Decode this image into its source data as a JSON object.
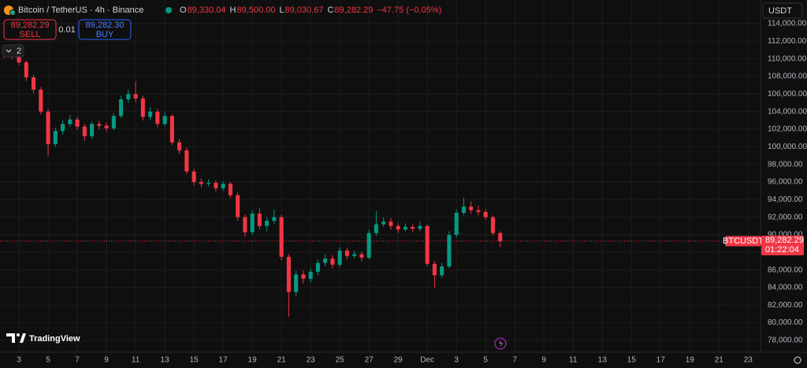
{
  "header": {
    "symbol": "Bitcoin / TetherUS · 4h · Binance",
    "ohlc": [
      {
        "label": "O",
        "value": "89,330.04"
      },
      {
        "label": "H",
        "value": "89,500.00"
      },
      {
        "label": "L",
        "value": "89,030.67"
      },
      {
        "label": "C",
        "value": "89,282.29"
      }
    ],
    "change": "−47.75 (−0.05%)"
  },
  "trade_panel": {
    "sell_price": "89,282.29",
    "sell": "SELL",
    "spread": "0.01",
    "buy_price": "89,282.30",
    "buy": "BUY"
  },
  "indicators_count": "2",
  "currency": "USDT",
  "logo": "TradingView",
  "last_price_label": {
    "symbol": "BTCUSDT",
    "price": "89,282.29",
    "countdown": "01:22:04"
  },
  "chart_data": {
    "type": "candlestick",
    "up_color": "#089981",
    "down_color": "#f23645",
    "open": [
      110600,
      110400,
      110300,
      109600,
      107900,
      106500,
      104000,
      100300,
      101800,
      102600,
      103100,
      102300,
      101200,
      102600,
      102400,
      102100,
      103500,
      105400,
      106000,
      105500,
      103400,
      104000,
      102600,
      103500,
      100500,
      99600,
      97200,
      96000,
      95800,
      95900,
      95300,
      95800,
      94500,
      92000,
      90300,
      92400,
      91000,
      91600,
      92000,
      87500,
      83500,
      85500,
      85000,
      85800,
      86800,
      87300,
      86600,
      88200,
      87600,
      87800,
      87400,
      90200,
      91200,
      91500,
      91000,
      90600,
      90900,
      90700,
      91000,
      86700,
      85400,
      86400,
      90000,
      92500,
      93200,
      92800,
      92600,
      92000,
      90200
    ],
    "high": [
      110900,
      110700,
      110500,
      109800,
      108200,
      106800,
      104300,
      102200,
      103000,
      103600,
      103400,
      102600,
      102900,
      103000,
      102800,
      103800,
      105800,
      106500,
      107400,
      105800,
      104500,
      104300,
      103900,
      103700,
      100900,
      99900,
      97500,
      96400,
      96300,
      96200,
      96100,
      96000,
      94800,
      92300,
      92800,
      93000,
      92000,
      92900,
      92300,
      87800,
      85900,
      86000,
      86200,
      87200,
      87800,
      87700,
      88600,
      88500,
      88200,
      88100,
      90600,
      92700,
      92000,
      91900,
      91300,
      91300,
      91200,
      91500,
      91200,
      87000,
      86800,
      90400,
      92900,
      94200,
      93800,
      93300,
      92900,
      92200,
      90400
    ],
    "low": [
      110100,
      110000,
      109300,
      107500,
      106100,
      103700,
      99000,
      100000,
      101400,
      102300,
      101900,
      100700,
      100900,
      102000,
      101700,
      101900,
      103300,
      105000,
      105100,
      103000,
      103000,
      102200,
      102300,
      100200,
      99200,
      96900,
      95600,
      95400,
      95500,
      94900,
      95000,
      94200,
      91600,
      89800,
      90000,
      90600,
      90400,
      91200,
      87100,
      80700,
      83000,
      84500,
      84600,
      85400,
      86400,
      86200,
      86300,
      87200,
      87300,
      87000,
      87200,
      89900,
      90900,
      90600,
      90200,
      90400,
      90300,
      90400,
      86400,
      84000,
      85100,
      86200,
      89700,
      92200,
      92400,
      92200,
      91700,
      89900,
      88600
    ],
    "close": [
      110400,
      110300,
      109600,
      107900,
      106500,
      104000,
      100300,
      101800,
      102600,
      103100,
      102300,
      101200,
      102600,
      102400,
      102100,
      103500,
      105400,
      106000,
      105500,
      103400,
      104000,
      102600,
      103500,
      100500,
      99600,
      97200,
      96000,
      95800,
      95900,
      95300,
      95800,
      94500,
      92000,
      90300,
      92400,
      91000,
      91600,
      92000,
      87500,
      83500,
      85500,
      85000,
      85800,
      86800,
      87300,
      86600,
      88200,
      87600,
      87800,
      87400,
      90200,
      91200,
      91500,
      91000,
      90600,
      90900,
      90700,
      91000,
      86700,
      85400,
      86400,
      90000,
      92500,
      93200,
      92800,
      92600,
      92000,
      90200,
      89282.29
    ],
    "xlim": [
      -0.6,
      103.7
    ],
    "xticks": [
      {
        "value": 2,
        "label": "3"
      },
      {
        "value": 6,
        "label": "5"
      },
      {
        "value": 10,
        "label": "7"
      },
      {
        "value": 14,
        "label": "9"
      },
      {
        "value": 18,
        "label": "11"
      },
      {
        "value": 22,
        "label": "13"
      },
      {
        "value": 26,
        "label": "15"
      },
      {
        "value": 30,
        "label": "17"
      },
      {
        "value": 34,
        "label": "19"
      },
      {
        "value": 38,
        "label": "21"
      },
      {
        "value": 42,
        "label": "23"
      },
      {
        "value": 46,
        "label": "25"
      },
      {
        "value": 50,
        "label": "27"
      },
      {
        "value": 54,
        "label": "29"
      },
      {
        "value": 58,
        "label": "Dec"
      },
      {
        "value": 62,
        "label": "3"
      },
      {
        "value": 66,
        "label": "5"
      },
      {
        "value": 70,
        "label": "7"
      },
      {
        "value": 74,
        "label": "9"
      },
      {
        "value": 78,
        "label": "11"
      },
      {
        "value": 82,
        "label": "13"
      },
      {
        "value": 86,
        "label": "15"
      },
      {
        "value": 90,
        "label": "17"
      },
      {
        "value": 94,
        "label": "19"
      },
      {
        "value": 98,
        "label": "21"
      },
      {
        "value": 102,
        "label": "23"
      }
    ],
    "ylim": [
      76650,
      116690
    ],
    "yticks": [
      {
        "value": 78000,
        "label": "78,000.00"
      },
      {
        "value": 80000,
        "label": "80,000.00"
      },
      {
        "value": 82000,
        "label": "82,000.00"
      },
      {
        "value": 84000,
        "label": "84,000.00"
      },
      {
        "value": 86000,
        "label": "86,000.00"
      },
      {
        "value": 88000,
        "label": "88,000.00"
      },
      {
        "value": 90000,
        "label": "90,000.00"
      },
      {
        "value": 92000,
        "label": "92,000.00"
      },
      {
        "value": 94000,
        "label": "94,000.00"
      },
      {
        "value": 96000,
        "label": "96,000.00"
      },
      {
        "value": 98000,
        "label": "98,000.00"
      },
      {
        "value": 100000,
        "label": "100,000.00"
      },
      {
        "value": 102000,
        "label": "102,000.00"
      },
      {
        "value": 104000,
        "label": "104,000.00"
      },
      {
        "value": 106000,
        "label": "106,000.00"
      },
      {
        "value": 108000,
        "label": "108,000.00"
      },
      {
        "value": 110000,
        "label": "110,000.00"
      },
      {
        "value": 112000,
        "label": "112,000.00"
      },
      {
        "value": 114000,
        "label": "114,000.00"
      }
    ],
    "grid": true
  }
}
